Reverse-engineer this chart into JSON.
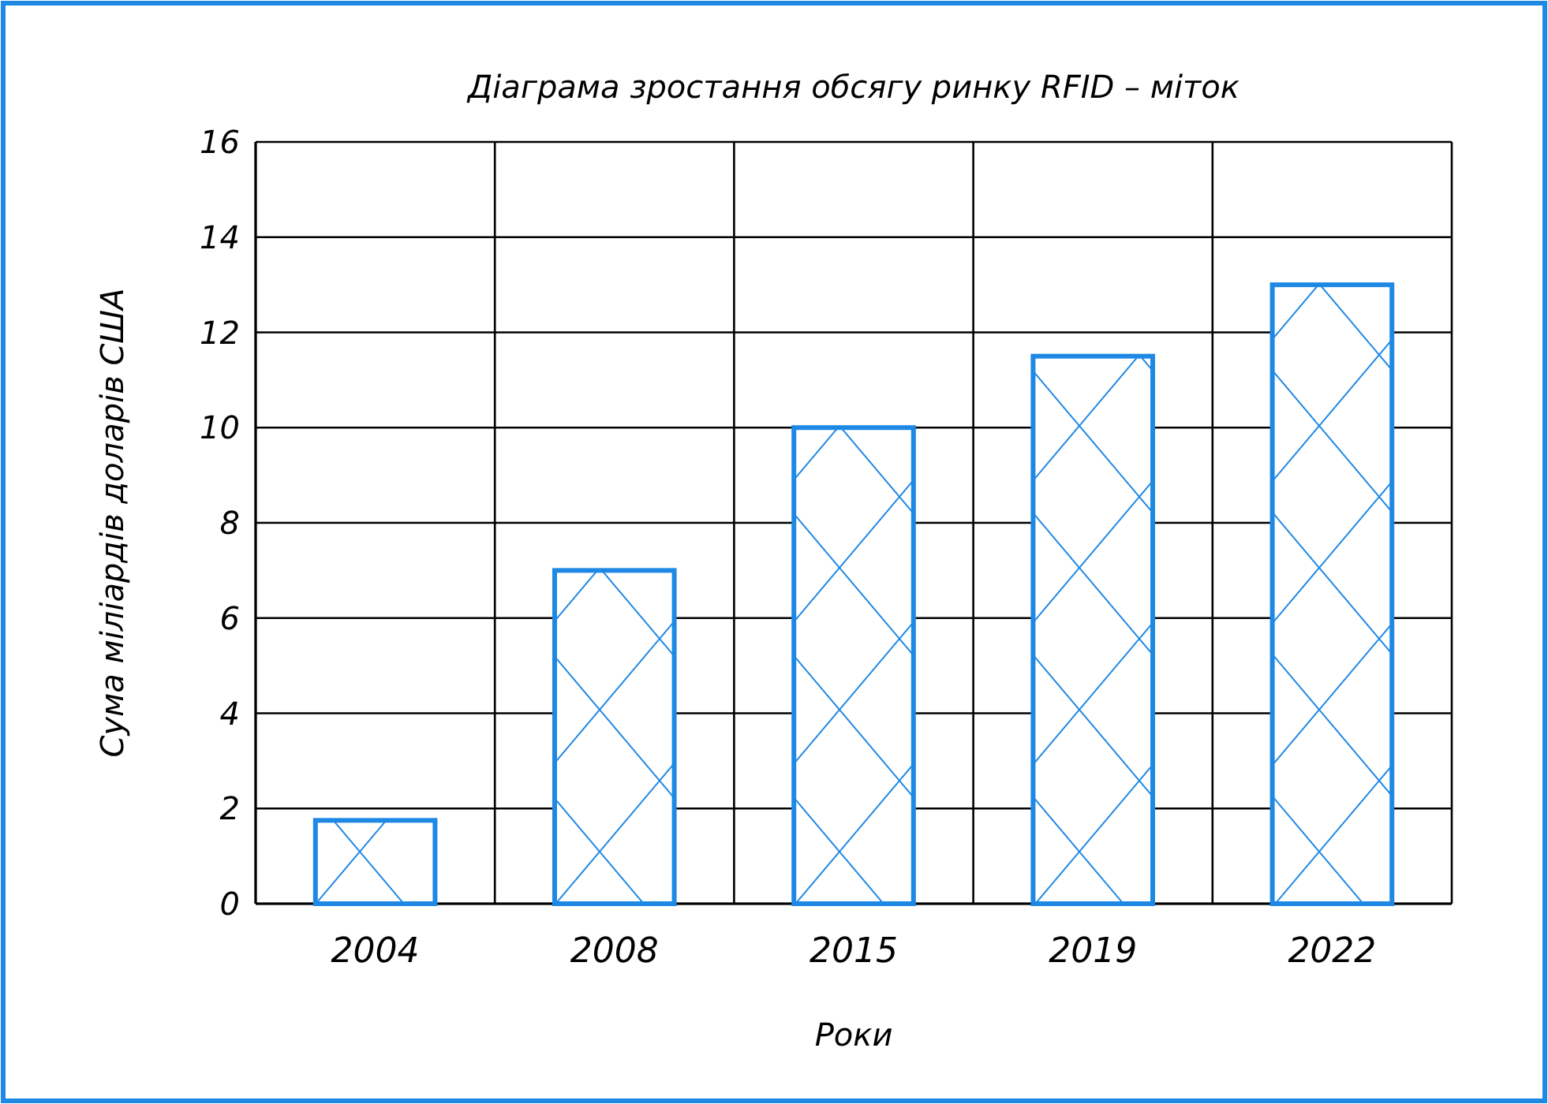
{
  "chart_data": {
    "type": "bar",
    "title": "Діаграма зростання обсягу ринку RFID – міток",
    "xlabel": "Роки",
    "ylabel": "Сума міліардів доларів США",
    "categories": [
      "2004",
      "2008",
      "2015",
      "2019",
      "2022"
    ],
    "values": [
      1.75,
      7,
      10,
      11.5,
      13
    ],
    "color": "#1e88e5",
    "ylim": [
      0,
      16
    ],
    "yticks": [
      0,
      2,
      4,
      6,
      8,
      10,
      12,
      14,
      16
    ],
    "grid": true
  }
}
